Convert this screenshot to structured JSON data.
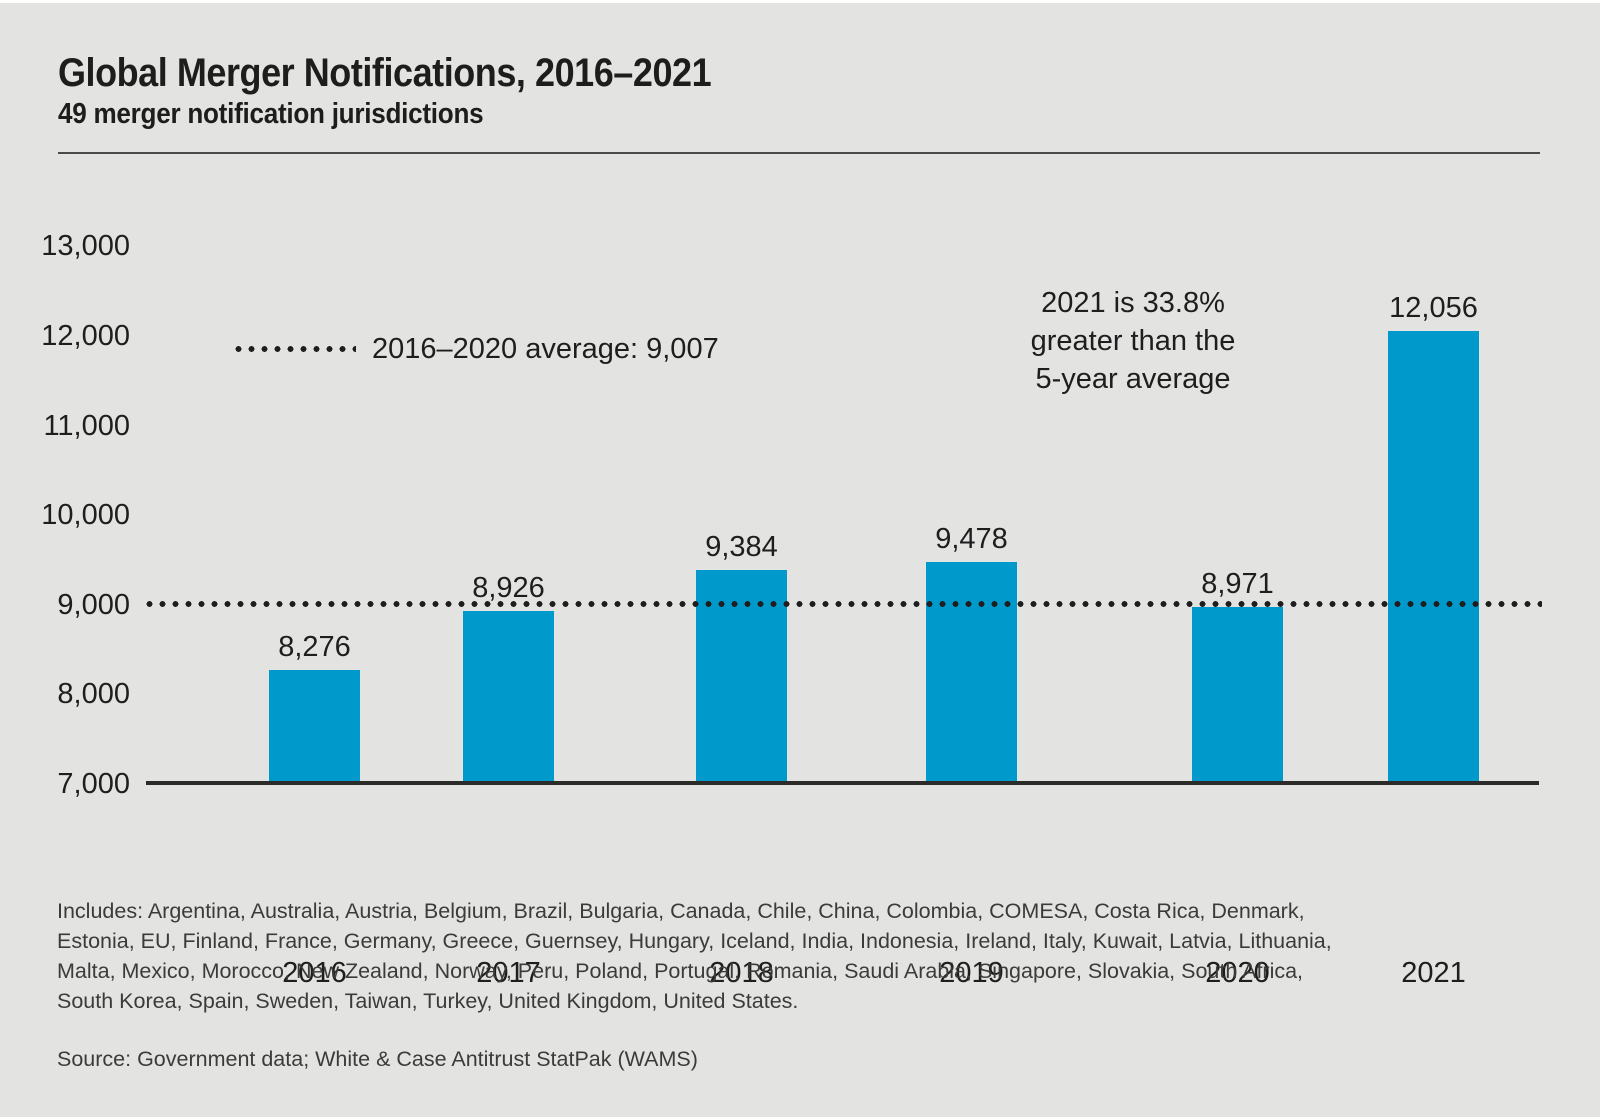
{
  "header": {
    "title": "Global Merger Notifications, 2016–2021",
    "subtitle": "49 merger notification jurisdictions"
  },
  "legend": {
    "label": "2016–2020 average: 9,007"
  },
  "annotation": {
    "lines": [
      "2021 is 33.8%",
      "greater than the",
      "5-year average"
    ]
  },
  "chart_data": {
    "type": "bar",
    "title": "Global Merger Notifications, 2016–2021",
    "subtitle": "49 merger notification jurisdictions",
    "categories": [
      "2016",
      "2017",
      "2018",
      "2019",
      "2020",
      "2021"
    ],
    "values": [
      8276,
      8926,
      9384,
      9478,
      8971,
      12056
    ],
    "value_labels": [
      "8,276",
      "8,926",
      "9,384",
      "9,478",
      "8,971",
      "12,056"
    ],
    "xlabel": "",
    "ylabel": "",
    "ylim": [
      7000,
      13000
    ],
    "ytick_interval": 1000,
    "ytick_labels": [
      "13,000",
      "12,000",
      "11,000",
      "10,000",
      "9,000",
      "8,000",
      "7,000"
    ],
    "average_line": {
      "value": 9007,
      "label": "2016–2020 average: 9,007",
      "style": "dotted"
    },
    "annotation": "2021 is 33.8% greater than the 5-year average",
    "bar_color": "#0099cb",
    "text_color": "#1e1e1e",
    "background_color": "#e3e3e2",
    "grid": false,
    "legend_position": "upper-left-in-plot"
  },
  "footer": {
    "includes_lines": [
      "Includes: Argentina, Australia, Austria, Belgium, Brazil, Bulgaria, Canada, Chile, China, Colombia, COMESA, Costa Rica, Denmark,",
      "Estonia, EU, Finland, France, Germany, Greece, Guernsey, Hungary, Iceland, India, Indonesia, Ireland, Italy, Kuwait, Latvia, Lithuania,",
      "Malta, Mexico, Morocco, New Zealand, Norway, Peru, Poland, Portugal, Romania, Saudi Arabia, Singapore, Slovakia, South Africa,",
      "South Korea, Spain, Sweden, Taiwan, Turkey, United Kingdom, United States."
    ],
    "source": "Source: Government data; White & Case Antitrust StatPak (WAMS)"
  }
}
